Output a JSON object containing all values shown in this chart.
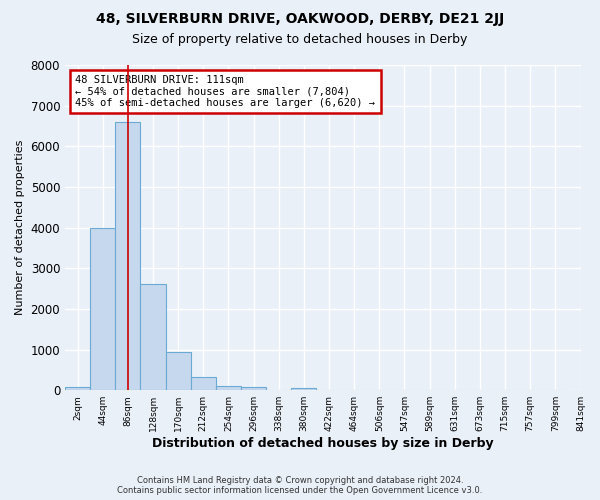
{
  "title1": "48, SILVERBURN DRIVE, OAKWOOD, DERBY, DE21 2JJ",
  "title2": "Size of property relative to detached houses in Derby",
  "xlabel": "Distribution of detached houses by size in Derby",
  "ylabel": "Number of detached properties",
  "footer1": "Contains HM Land Registry data © Crown copyright and database right 2024.",
  "footer2": "Contains public sector information licensed under the Open Government Licence v3.0.",
  "annotation_line1": "48 SILVERBURN DRIVE: 111sqm",
  "annotation_line2": "← 54% of detached houses are smaller (7,804)",
  "annotation_line3": "45% of semi-detached houses are larger (6,620) →",
  "bar_values": [
    70,
    3980,
    6600,
    2620,
    950,
    330,
    110,
    70,
    0,
    50,
    0,
    0,
    0,
    0,
    0,
    0,
    0,
    0,
    0,
    0
  ],
  "bin_labels": [
    "2sqm",
    "44sqm",
    "86sqm",
    "128sqm",
    "170sqm",
    "212sqm",
    "254sqm",
    "296sqm",
    "338sqm",
    "380sqm",
    "422sqm",
    "464sqm",
    "506sqm",
    "547sqm",
    "589sqm",
    "631sqm",
    "673sqm",
    "715sqm",
    "757sqm",
    "799sqm"
  ],
  "bar_color": "#c5d8ed",
  "bar_edge_color": "#6aaad4",
  "vline_x": 2,
  "vline_color": "#cc0000",
  "annotation_box_edge": "#cc0000",
  "bg_color": "#eaf0f8",
  "plot_bg_color": "#eaf0f8",
  "grid_color": "#ffffff",
  "ylim": [
    0,
    8000
  ],
  "yticks": [
    0,
    1000,
    2000,
    3000,
    4000,
    5000,
    6000,
    7000,
    8000
  ],
  "extra_tick_label": "841sqm"
}
